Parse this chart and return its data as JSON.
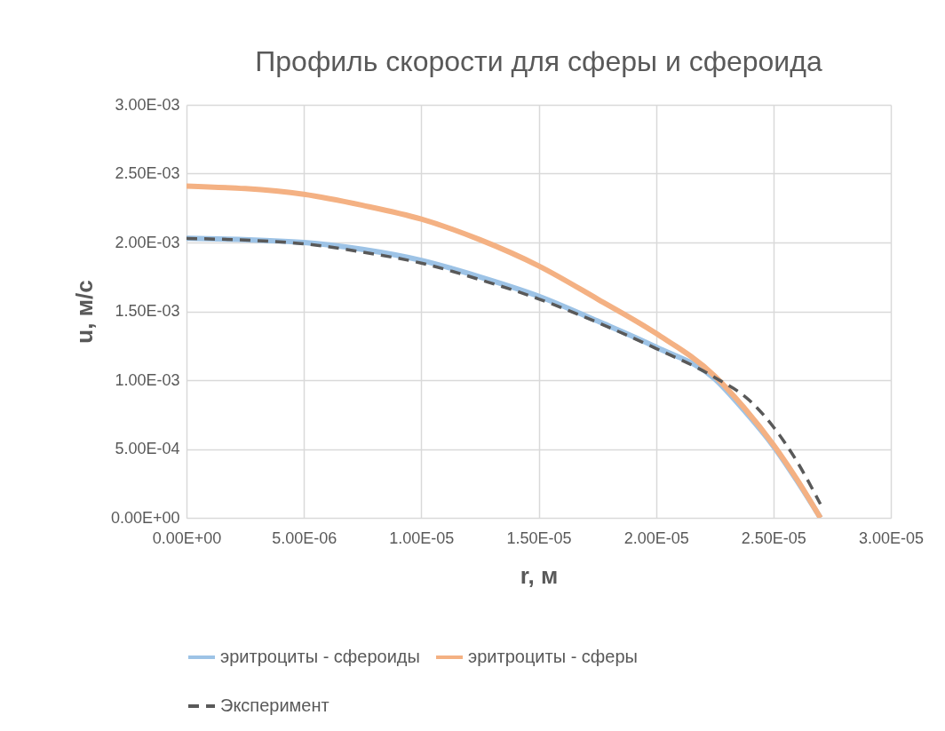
{
  "chart_data": {
    "type": "line",
    "title": "Профиль скорости для сферы и сфероида",
    "xlabel": "r, м",
    "ylabel": "u, м/с",
    "xlim": [
      0,
      3e-05
    ],
    "ylim": [
      0,
      0.003
    ],
    "xticks": [
      {
        "value": 0,
        "label": "0.00E+00"
      },
      {
        "value": 5e-06,
        "label": "5.00E-06"
      },
      {
        "value": 1e-05,
        "label": "1.00E-05"
      },
      {
        "value": 1.5e-05,
        "label": "1.50E-05"
      },
      {
        "value": 2e-05,
        "label": "2.00E-05"
      },
      {
        "value": 2.5e-05,
        "label": "2.50E-05"
      },
      {
        "value": 3e-05,
        "label": "3.00E-05"
      }
    ],
    "yticks": [
      {
        "value": 0,
        "label": "0.00E+00"
      },
      {
        "value": 0.0005,
        "label": "5.00E-04"
      },
      {
        "value": 0.001,
        "label": "1.00E-03"
      },
      {
        "value": 0.0015,
        "label": "1.50E-03"
      },
      {
        "value": 0.002,
        "label": "2.00E-03"
      },
      {
        "value": 0.0025,
        "label": "2.50E-03"
      },
      {
        "value": 0.003,
        "label": "3.00E-03"
      }
    ],
    "grid": true,
    "legend": "bottom",
    "marker": "none",
    "series": [
      {
        "name": "эритроциты - сфероиды",
        "color": "#9dc3e6",
        "line_style": "solid",
        "x": [
          0,
          5e-06,
          7.5e-06,
          1e-05,
          1.25e-05,
          1.5e-05,
          1.75e-05,
          2e-05,
          2.25e-05,
          2.375e-05,
          2.5e-05,
          2.6e-05,
          2.7e-05
        ],
        "values": [
          0.00203,
          0.002,
          0.00195,
          0.00187,
          0.00175,
          0.00161,
          0.00143,
          0.00124,
          0.00101,
          0.00078,
          0.00052,
          0.00027,
          0
        ]
      },
      {
        "name": "эритроциты - сферы",
        "color": "#f4b183",
        "line_style": "solid",
        "x": [
          0,
          5e-06,
          7.5e-06,
          1e-05,
          1.25e-05,
          1.5e-05,
          1.75e-05,
          2e-05,
          2.25e-05,
          2.375e-05,
          2.5e-05,
          2.6e-05,
          2.7e-05
        ],
        "values": [
          0.00241,
          0.00235,
          0.00227,
          0.00217,
          0.00202,
          0.00183,
          0.00159,
          0.00134,
          0.00103,
          0.0008,
          0.00053,
          0.00028,
          0
        ]
      },
      {
        "name": "Эксперимент",
        "color": "#595959",
        "line_style": "dashed",
        "x": [
          0,
          5e-06,
          7.5e-06,
          1e-05,
          1.25e-05,
          1.5e-05,
          1.75e-05,
          2e-05,
          2.25e-05,
          2.4e-05,
          2.5e-05,
          2.6e-05,
          2.7e-05
        ],
        "values": [
          0.00203,
          0.00199,
          0.00193,
          0.00185,
          0.00173,
          0.00159,
          0.00142,
          0.00123,
          0.00102,
          0.00085,
          0.00066,
          0.00041,
          0.0001
        ]
      }
    ]
  }
}
